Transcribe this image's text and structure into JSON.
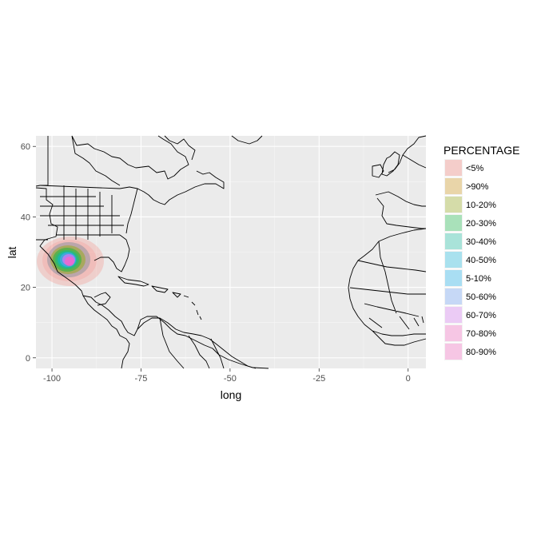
{
  "chart_data": {
    "type": "map",
    "xlabel": "long",
    "ylabel": "lat",
    "xlim": [
      -104.5,
      5
    ],
    "ylim": [
      -3,
      63
    ],
    "x_ticks": [
      -100,
      -75,
      -50,
      -25,
      0
    ],
    "x_tick_labels": [
      "-100",
      "-75",
      "-50",
      "-25",
      "0"
    ],
    "y_ticks": [
      0,
      20,
      40,
      60
    ],
    "y_tick_labels": [
      "0",
      "20",
      "40",
      "60"
    ],
    "grid": true,
    "legend": {
      "title": "PERCENTAGE",
      "position": "right",
      "entries": [
        {
          "label": "<5%",
          "color": "#F8766D"
        },
        {
          "label": ">90%",
          "color": "#D39200"
        },
        {
          "label": "10-20%",
          "color": "#93AA00"
        },
        {
          "label": "20-30%",
          "color": "#00BA38"
        },
        {
          "label": "30-40%",
          "color": "#00C19F"
        },
        {
          "label": "40-50%",
          "color": "#00B9E3"
        },
        {
          "label": "5-10%",
          "color": "#00B0F6"
        },
        {
          "label": "50-60%",
          "color": "#619CFF"
        },
        {
          "label": "60-70%",
          "color": "#DB72FB"
        },
        {
          "label": "70-80%",
          "color": "#FF61C3"
        },
        {
          "label": "80-90%",
          "color": "#FF61C3"
        }
      ]
    },
    "density_center": {
      "long": -96,
      "lat": 28
    }
  }
}
